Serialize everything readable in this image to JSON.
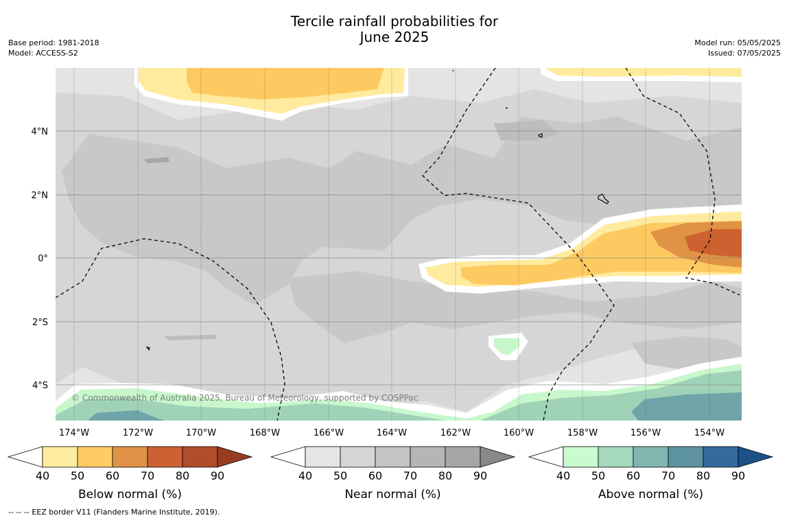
{
  "header": {
    "title_line1": "Tercile rainfall probabilities for",
    "title_line2": "June 2025",
    "base_period": "Base period: 1981-2018",
    "model": "Model: ACCESS-S2",
    "model_run": "Model run: 05/05/2025",
    "issued": "Issued: 07/05/2025"
  },
  "map": {
    "lat_labels": [
      "4°N",
      "2°N",
      "0°",
      "2°S",
      "4°S"
    ],
    "lon_labels": [
      "174°W",
      "172°W",
      "170°W",
      "168°W",
      "166°W",
      "164°W",
      "162°W",
      "160°W",
      "158°W",
      "156°W",
      "154°W"
    ],
    "copyright": "© Commonwealth of Australia 2025, Bureau of Meteorology, supported by COSPPac",
    "colors": {
      "land_gray": "#e4e4e4",
      "near_50": "#d6d6d6",
      "near_60": "#c7c7c7",
      "below_40": "#ffeb9e",
      "below_50": "#fdca62",
      "below_60": "#e09344",
      "below_70": "#cd6231",
      "above_40": "#c8f7cc",
      "above_50": "#a0d2b8",
      "above_60": "#6fa5a8"
    }
  },
  "colorbars": [
    {
      "title": "Below normal (%)",
      "ticks": [
        "40",
        "50",
        "60",
        "70",
        "80",
        "90"
      ],
      "colors": [
        "#ffed9f",
        "#ffcb65",
        "#df9246",
        "#cc6234",
        "#b04d2b",
        "#963c23"
      ]
    },
    {
      "title": "Near normal (%)",
      "ticks": [
        "40",
        "50",
        "60",
        "70",
        "80",
        "90"
      ],
      "colors": [
        "#e5e5e5",
        "#d5d5d5",
        "#c4c4c4",
        "#b5b5b5",
        "#a6a6a6",
        "#888888"
      ]
    },
    {
      "title": "Above normal (%)",
      "ticks": [
        "40",
        "50",
        "60",
        "70",
        "80",
        "90"
      ],
      "colors": [
        "#c8fbcf",
        "#a4d8bf",
        "#82b6b0",
        "#5d93a0",
        "#346a9e",
        "#1c5287"
      ]
    }
  ],
  "footer": {
    "legend_text": "--  --  -- EEZ border V11 (Flanders Marine Institute, 2019)."
  }
}
